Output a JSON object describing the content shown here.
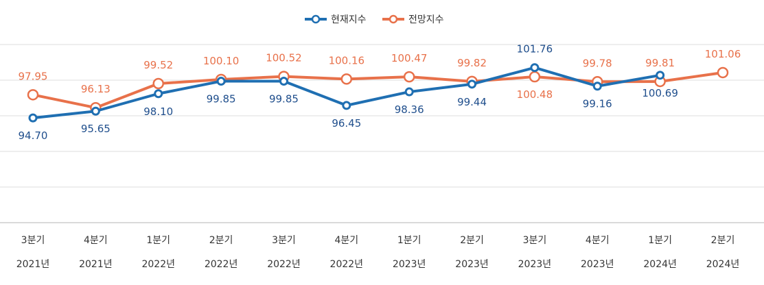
{
  "chart_data": {
    "type": "line",
    "categories": [
      [
        "3분기",
        "2021년"
      ],
      [
        "4분기",
        "2021년"
      ],
      [
        "1분기",
        "2022년"
      ],
      [
        "2분기",
        "2022년"
      ],
      [
        "3분기",
        "2022년"
      ],
      [
        "4분기",
        "2022년"
      ],
      [
        "1분기",
        "2023년"
      ],
      [
        "2분기",
        "2023년"
      ],
      [
        "3분기",
        "2023년"
      ],
      [
        "4분기",
        "2023년"
      ],
      [
        "1분기",
        "2024년"
      ],
      [
        "2분기",
        "2024년"
      ]
    ],
    "series": [
      {
        "name": "현재지수",
        "color": "#1f6fb2",
        "label_color": "#1f4e8c",
        "values": [
          94.7,
          95.65,
          98.1,
          99.85,
          99.85,
          96.45,
          98.36,
          99.44,
          101.76,
          99.16,
          100.69,
          null
        ],
        "labels": [
          "94.70",
          "95.65",
          "98.10",
          "99.85",
          "99.85",
          "96.45",
          "98.36",
          "99.44",
          "101.76",
          "99.16",
          "100.69",
          ""
        ],
        "label_pos": [
          "below",
          "below",
          "below",
          "below",
          "below",
          "below",
          "below",
          "below",
          "above",
          "below",
          "below",
          ""
        ]
      },
      {
        "name": "전망지수",
        "color": "#e8714a",
        "label_color": "#e8714a",
        "values": [
          97.95,
          96.13,
          99.52,
          100.1,
          100.52,
          100.16,
          100.47,
          99.82,
          100.48,
          99.78,
          99.81,
          101.06
        ],
        "labels": [
          "97.95",
          "96.13",
          "99.52",
          "100.10",
          "100.52",
          "100.16",
          "100.47",
          "99.82",
          "100.48",
          "99.78",
          "99.81",
          "101.06"
        ],
        "label_pos": [
          "above",
          "above",
          "above",
          "above",
          "above",
          "above",
          "above",
          "above",
          "below",
          "above",
          "above",
          "above"
        ]
      }
    ],
    "ylim": [
      80,
      105
    ],
    "grid": true,
    "legend": "top-center",
    "title": "",
    "xlabel": "",
    "ylabel": ""
  }
}
